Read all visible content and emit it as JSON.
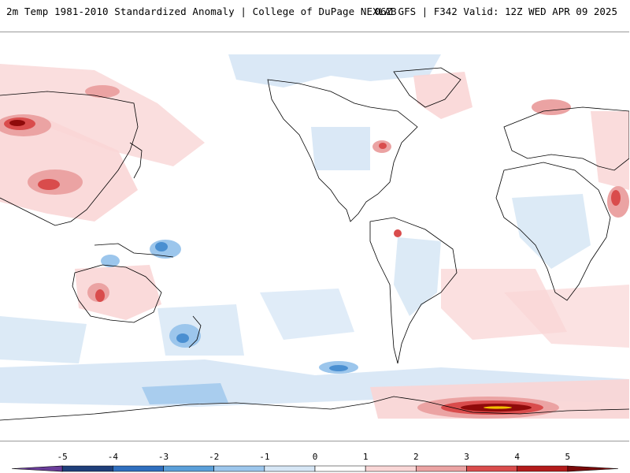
{
  "header": {
    "title": "2m Temp 1981-2010 Standardized Anomaly | College of DuPage NEXLAB",
    "run_info": "06Z GFS | F342 Valid: 12Z WED APR 09 2025"
  },
  "colorbar": {
    "ticks": [
      "-5",
      "-4",
      "-3",
      "-2",
      "-1",
      "0",
      "1",
      "2",
      "3",
      "4",
      "5"
    ],
    "colors": [
      "#6a3d9a",
      "#1f3f7a",
      "#2f6fbf",
      "#5a9fd9",
      "#9cc6ec",
      "#d6e6f5",
      "#ffffff",
      "#f9d6d6",
      "#eba3a3",
      "#d94c4c",
      "#b31b1b",
      "#7a0a0a",
      "#f2c200"
    ]
  },
  "map": {
    "background": "#ffffff",
    "coastline_color": "#000000",
    "warm_light": "#f9d6d6",
    "warm_mid": "#eba3a3",
    "warm_strong": "#d94c4c",
    "warm_extreme": "#8f0a0a",
    "cold_light": "#d6e6f5",
    "cold_mid": "#9cc6ec",
    "cold_strong": "#4a8fd1",
    "yellow": "#f2c200"
  }
}
